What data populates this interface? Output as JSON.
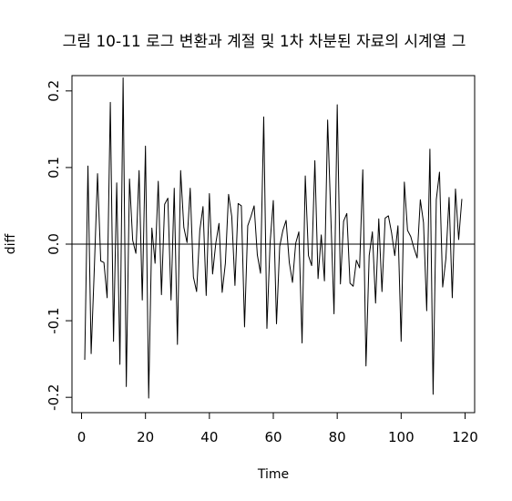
{
  "chart_data": {
    "type": "line",
    "title": "그림 10-11 로그 변환과 계절 및 1차 차분된 자료의 시계열 그",
    "xlabel": "Time",
    "ylabel": "diff",
    "xlim": [
      -3,
      123
    ],
    "ylim": [
      -0.22,
      0.22
    ],
    "x_ticks": [
      0,
      20,
      40,
      60,
      80,
      100,
      120
    ],
    "x_tick_labels": [
      "0",
      "20",
      "40",
      "60",
      "80",
      "100",
      "120"
    ],
    "y_ticks": [
      -0.2,
      -0.1,
      0.0,
      0.1,
      0.2
    ],
    "y_tick_labels": [
      "-0.2",
      "-0.1",
      "0.0",
      "0.1",
      "0.2"
    ],
    "reference_line": 0,
    "series": [
      {
        "x_start": 1,
        "values": [
          -0.151,
          0.102,
          -0.143,
          -0.031,
          0.092,
          -0.022,
          -0.024,
          -0.07,
          0.185,
          -0.127,
          0.08,
          -0.157,
          0.217,
          -0.186,
          0.085,
          0.005,
          -0.012,
          0.096,
          -0.073,
          0.128,
          -0.201,
          0.021,
          -0.025,
          0.082,
          -0.066,
          0.052,
          0.06,
          -0.073,
          0.073,
          -0.131,
          0.096,
          0.022,
          0.002,
          0.073,
          -0.043,
          -0.062,
          0.018,
          0.049,
          -0.067,
          0.066,
          -0.039,
          0.001,
          0.027,
          -0.063,
          -0.025,
          0.065,
          0.036,
          -0.054,
          0.053,
          0.05,
          -0.108,
          0.024,
          0.036,
          0.05,
          -0.014,
          -0.038,
          0.166,
          -0.11,
          0.002,
          0.057,
          -0.104,
          -0.003,
          0.018,
          0.031,
          -0.024,
          -0.05,
          0.001,
          0.016,
          -0.129,
          0.089,
          -0.015,
          -0.028,
          0.109,
          -0.045,
          0.012,
          -0.048,
          0.162,
          0.036,
          -0.091,
          0.182,
          -0.052,
          0.03,
          0.04,
          -0.051,
          -0.055,
          -0.021,
          -0.031,
          0.097,
          -0.159,
          -0.015,
          0.016,
          -0.077,
          0.033,
          -0.062,
          0.034,
          0.037,
          0.015,
          -0.015,
          0.024,
          -0.127,
          0.081,
          0.018,
          0.01,
          -0.005,
          -0.018,
          0.058,
          0.028,
          -0.087,
          0.124,
          -0.196,
          0.058,
          0.094,
          -0.056,
          -0.019,
          0.061,
          -0.07,
          0.072,
          0.006,
          0.059
        ]
      }
    ]
  }
}
